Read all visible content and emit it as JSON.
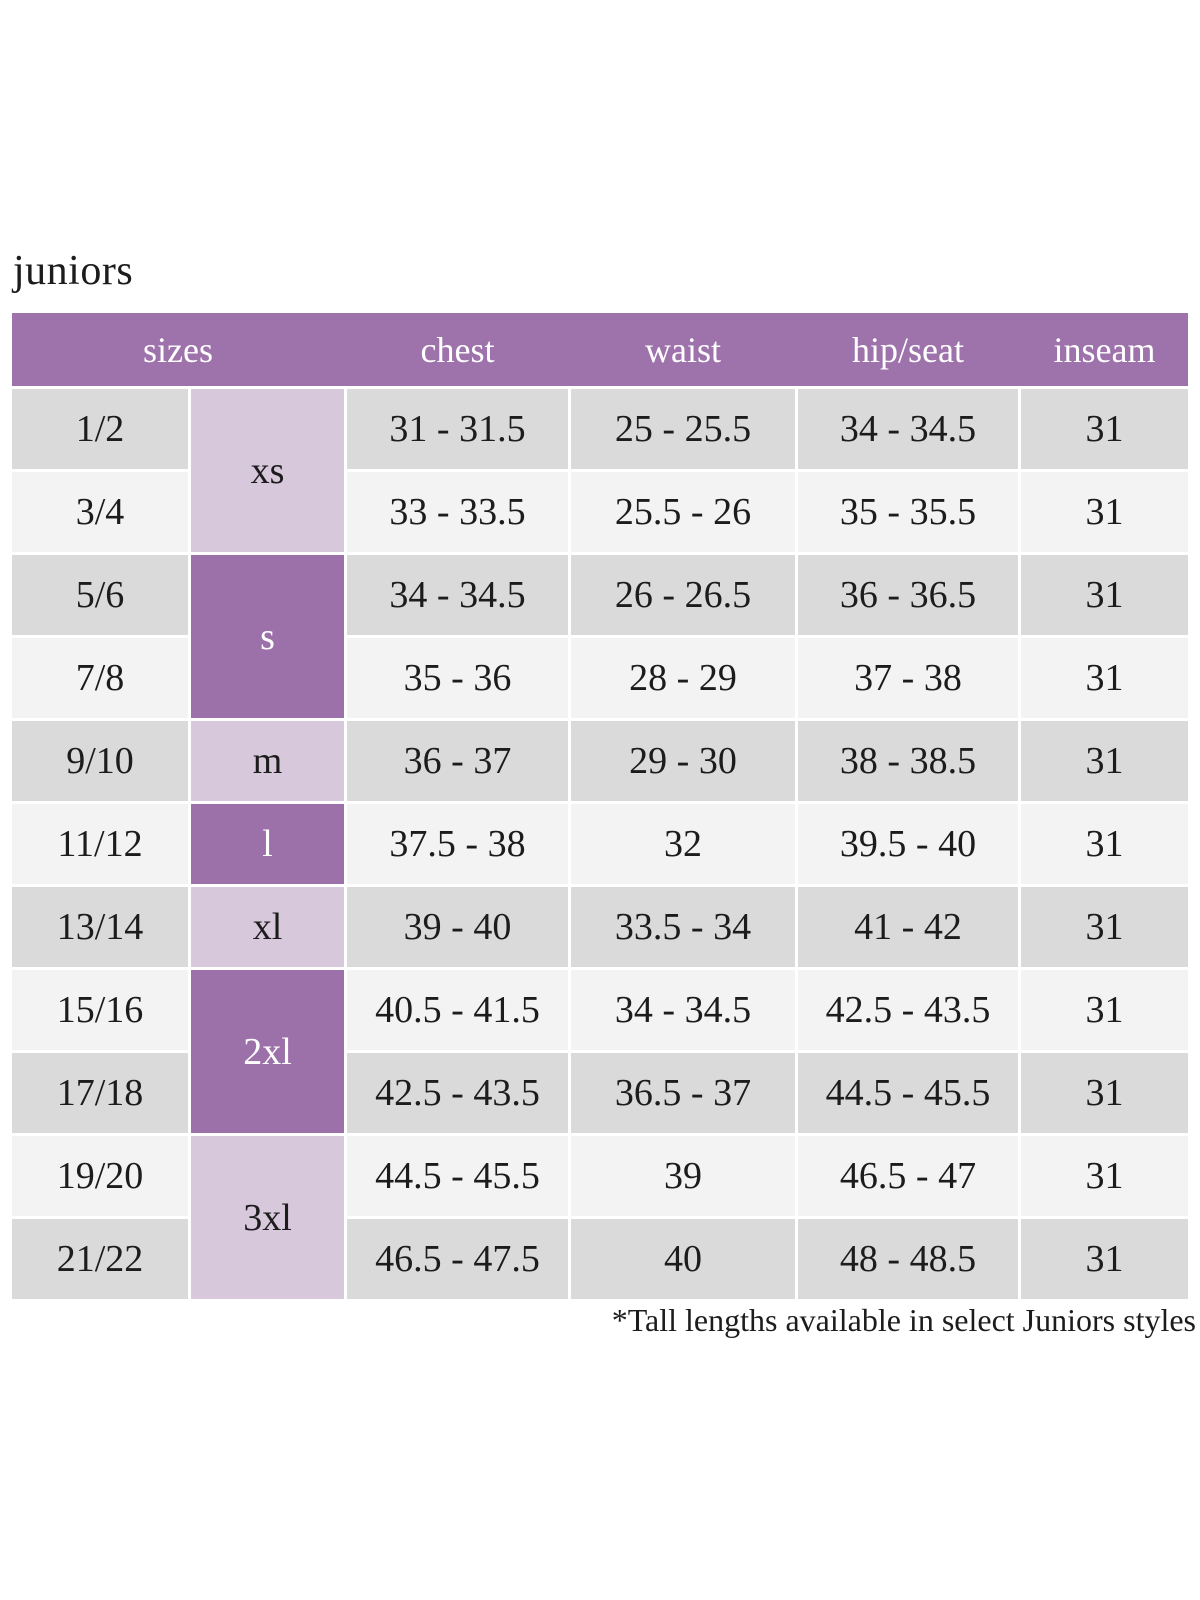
{
  "page_title": "juniors",
  "footnote": "*Tall lengths available in select Juniors styles",
  "colors": {
    "page_bg": "#ffffff",
    "header_bg": "#9e73ac",
    "letter_dark": "#9c70a9",
    "letter_light": "#d7c8dc",
    "row_gray": "#dbdadb",
    "row_light": "#f4f3f4",
    "text_dark": "#1c1c1c",
    "text_light": "#ffffff"
  },
  "table": {
    "headers": [
      "sizes",
      "chest",
      "waist",
      "hip/seat",
      "inseam"
    ],
    "size_groups": [
      {
        "label": "xs",
        "shade": "light",
        "row_count": 2
      },
      {
        "label": "s",
        "shade": "dark",
        "row_count": 2
      },
      {
        "label": "m",
        "shade": "light",
        "row_count": 1
      },
      {
        "label": "l",
        "shade": "dark",
        "row_count": 1
      },
      {
        "label": "xl",
        "shade": "light",
        "row_count": 1
      },
      {
        "label": "2xl",
        "shade": "dark",
        "row_count": 2
      },
      {
        "label": "3xl",
        "shade": "light",
        "row_count": 2
      }
    ],
    "rows": [
      {
        "size": "1/2",
        "chest": "31 - 31.5",
        "waist": "25 - 25.5",
        "hip_seat": "34 - 34.5",
        "inseam": "31"
      },
      {
        "size": "3/4",
        "chest": "33 - 33.5",
        "waist": "25.5 - 26",
        "hip_seat": "35 - 35.5",
        "inseam": "31"
      },
      {
        "size": "5/6",
        "chest": "34 - 34.5",
        "waist": "26 - 26.5",
        "hip_seat": "36 - 36.5",
        "inseam": "31"
      },
      {
        "size": "7/8",
        "chest": "35 - 36",
        "waist": "28 - 29",
        "hip_seat": "37 - 38",
        "inseam": "31"
      },
      {
        "size": "9/10",
        "chest": "36 - 37",
        "waist": "29 - 30",
        "hip_seat": "38 - 38.5",
        "inseam": "31"
      },
      {
        "size": "11/12",
        "chest": "37.5 - 38",
        "waist": "32",
        "hip_seat": "39.5 - 40",
        "inseam": "31"
      },
      {
        "size": "13/14",
        "chest": "39 - 40",
        "waist": "33.5 - 34",
        "hip_seat": "41 - 42",
        "inseam": "31"
      },
      {
        "size": "15/16",
        "chest": "40.5 - 41.5",
        "waist": "34 - 34.5",
        "hip_seat": "42.5 - 43.5",
        "inseam": "31"
      },
      {
        "size": "17/18",
        "chest": "42.5 - 43.5",
        "waist": "36.5 - 37",
        "hip_seat": "44.5 - 45.5",
        "inseam": "31"
      },
      {
        "size": "19/20",
        "chest": "44.5 - 45.5",
        "waist": "39",
        "hip_seat": "46.5 - 47",
        "inseam": "31"
      },
      {
        "size": "21/22",
        "chest": "46.5 - 47.5",
        "waist": "40",
        "hip_seat": "48 - 48.5",
        "inseam": "31"
      }
    ]
  }
}
